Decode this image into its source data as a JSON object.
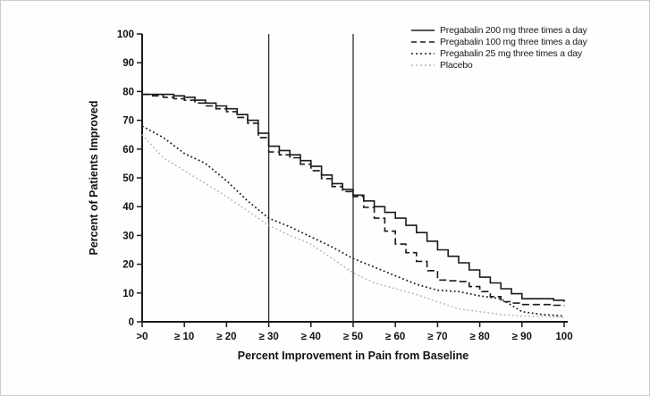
{
  "chart_data": {
    "type": "line",
    "title": "",
    "xlabel": "Percent Improvement in Pain from Baseline",
    "ylabel": "Percent of Patients Improved",
    "xlim": [
      0,
      100
    ],
    "ylim": [
      0,
      100
    ],
    "grid": false,
    "legend_position": "top-right",
    "x_tick_labels": [
      ">0",
      "≥ 10",
      "≥ 20",
      "≥ 30",
      "≥ 40",
      "≥ 50",
      "≥ 60",
      "≥ 70",
      "≥ 80",
      "≥ 90",
      "100"
    ],
    "x_tick_values": [
      0,
      10,
      20,
      30,
      40,
      50,
      60,
      70,
      80,
      90,
      100
    ],
    "y_tick_values": [
      0,
      10,
      20,
      30,
      40,
      50,
      60,
      70,
      80,
      90,
      100
    ],
    "reference_lines_x": [
      30,
      50
    ],
    "x": [
      0,
      5,
      10,
      15,
      20,
      25,
      30,
      35,
      40,
      45,
      50,
      55,
      60,
      65,
      70,
      75,
      80,
      85,
      90,
      95,
      100
    ],
    "series": [
      {
        "name": "Pregabalin 200 mg three times a day",
        "style": "solid",
        "color": "#1a1a1a",
        "values": [
          79,
          79,
          78,
          76,
          74,
          70,
          61,
          58,
          54,
          48,
          44,
          40,
          36,
          31,
          25,
          20.5,
          15.5,
          11.5,
          8,
          8,
          7
        ]
      },
      {
        "name": "Pregabalin 100 mg three times a day",
        "style": "dashed",
        "color": "#1a1a1a",
        "values": [
          79,
          78,
          77,
          75,
          73,
          69,
          59,
          57,
          52.5,
          47,
          43.5,
          36,
          27,
          21,
          14.5,
          14,
          10.5,
          7,
          6,
          6,
          5.5
        ]
      },
      {
        "name": "Pregabalin 25 mg three times a day",
        "style": "dotted",
        "color": "#1a1a1a",
        "values": [
          68,
          64,
          58.5,
          55,
          49,
          42,
          36,
          33,
          29.5,
          26,
          22,
          19,
          16,
          13,
          11,
          10.5,
          9,
          8,
          3.5,
          2.5,
          2
        ]
      },
      {
        "name": "Placebo",
        "style": "dotted",
        "color": "#b3b3b3",
        "values": [
          65,
          57,
          52.5,
          48,
          43.5,
          38.5,
          33.5,
          30,
          27,
          22,
          17,
          13.5,
          11.5,
          9.5,
          7,
          4.5,
          3.5,
          2.5,
          2,
          2,
          1.5
        ]
      }
    ]
  }
}
